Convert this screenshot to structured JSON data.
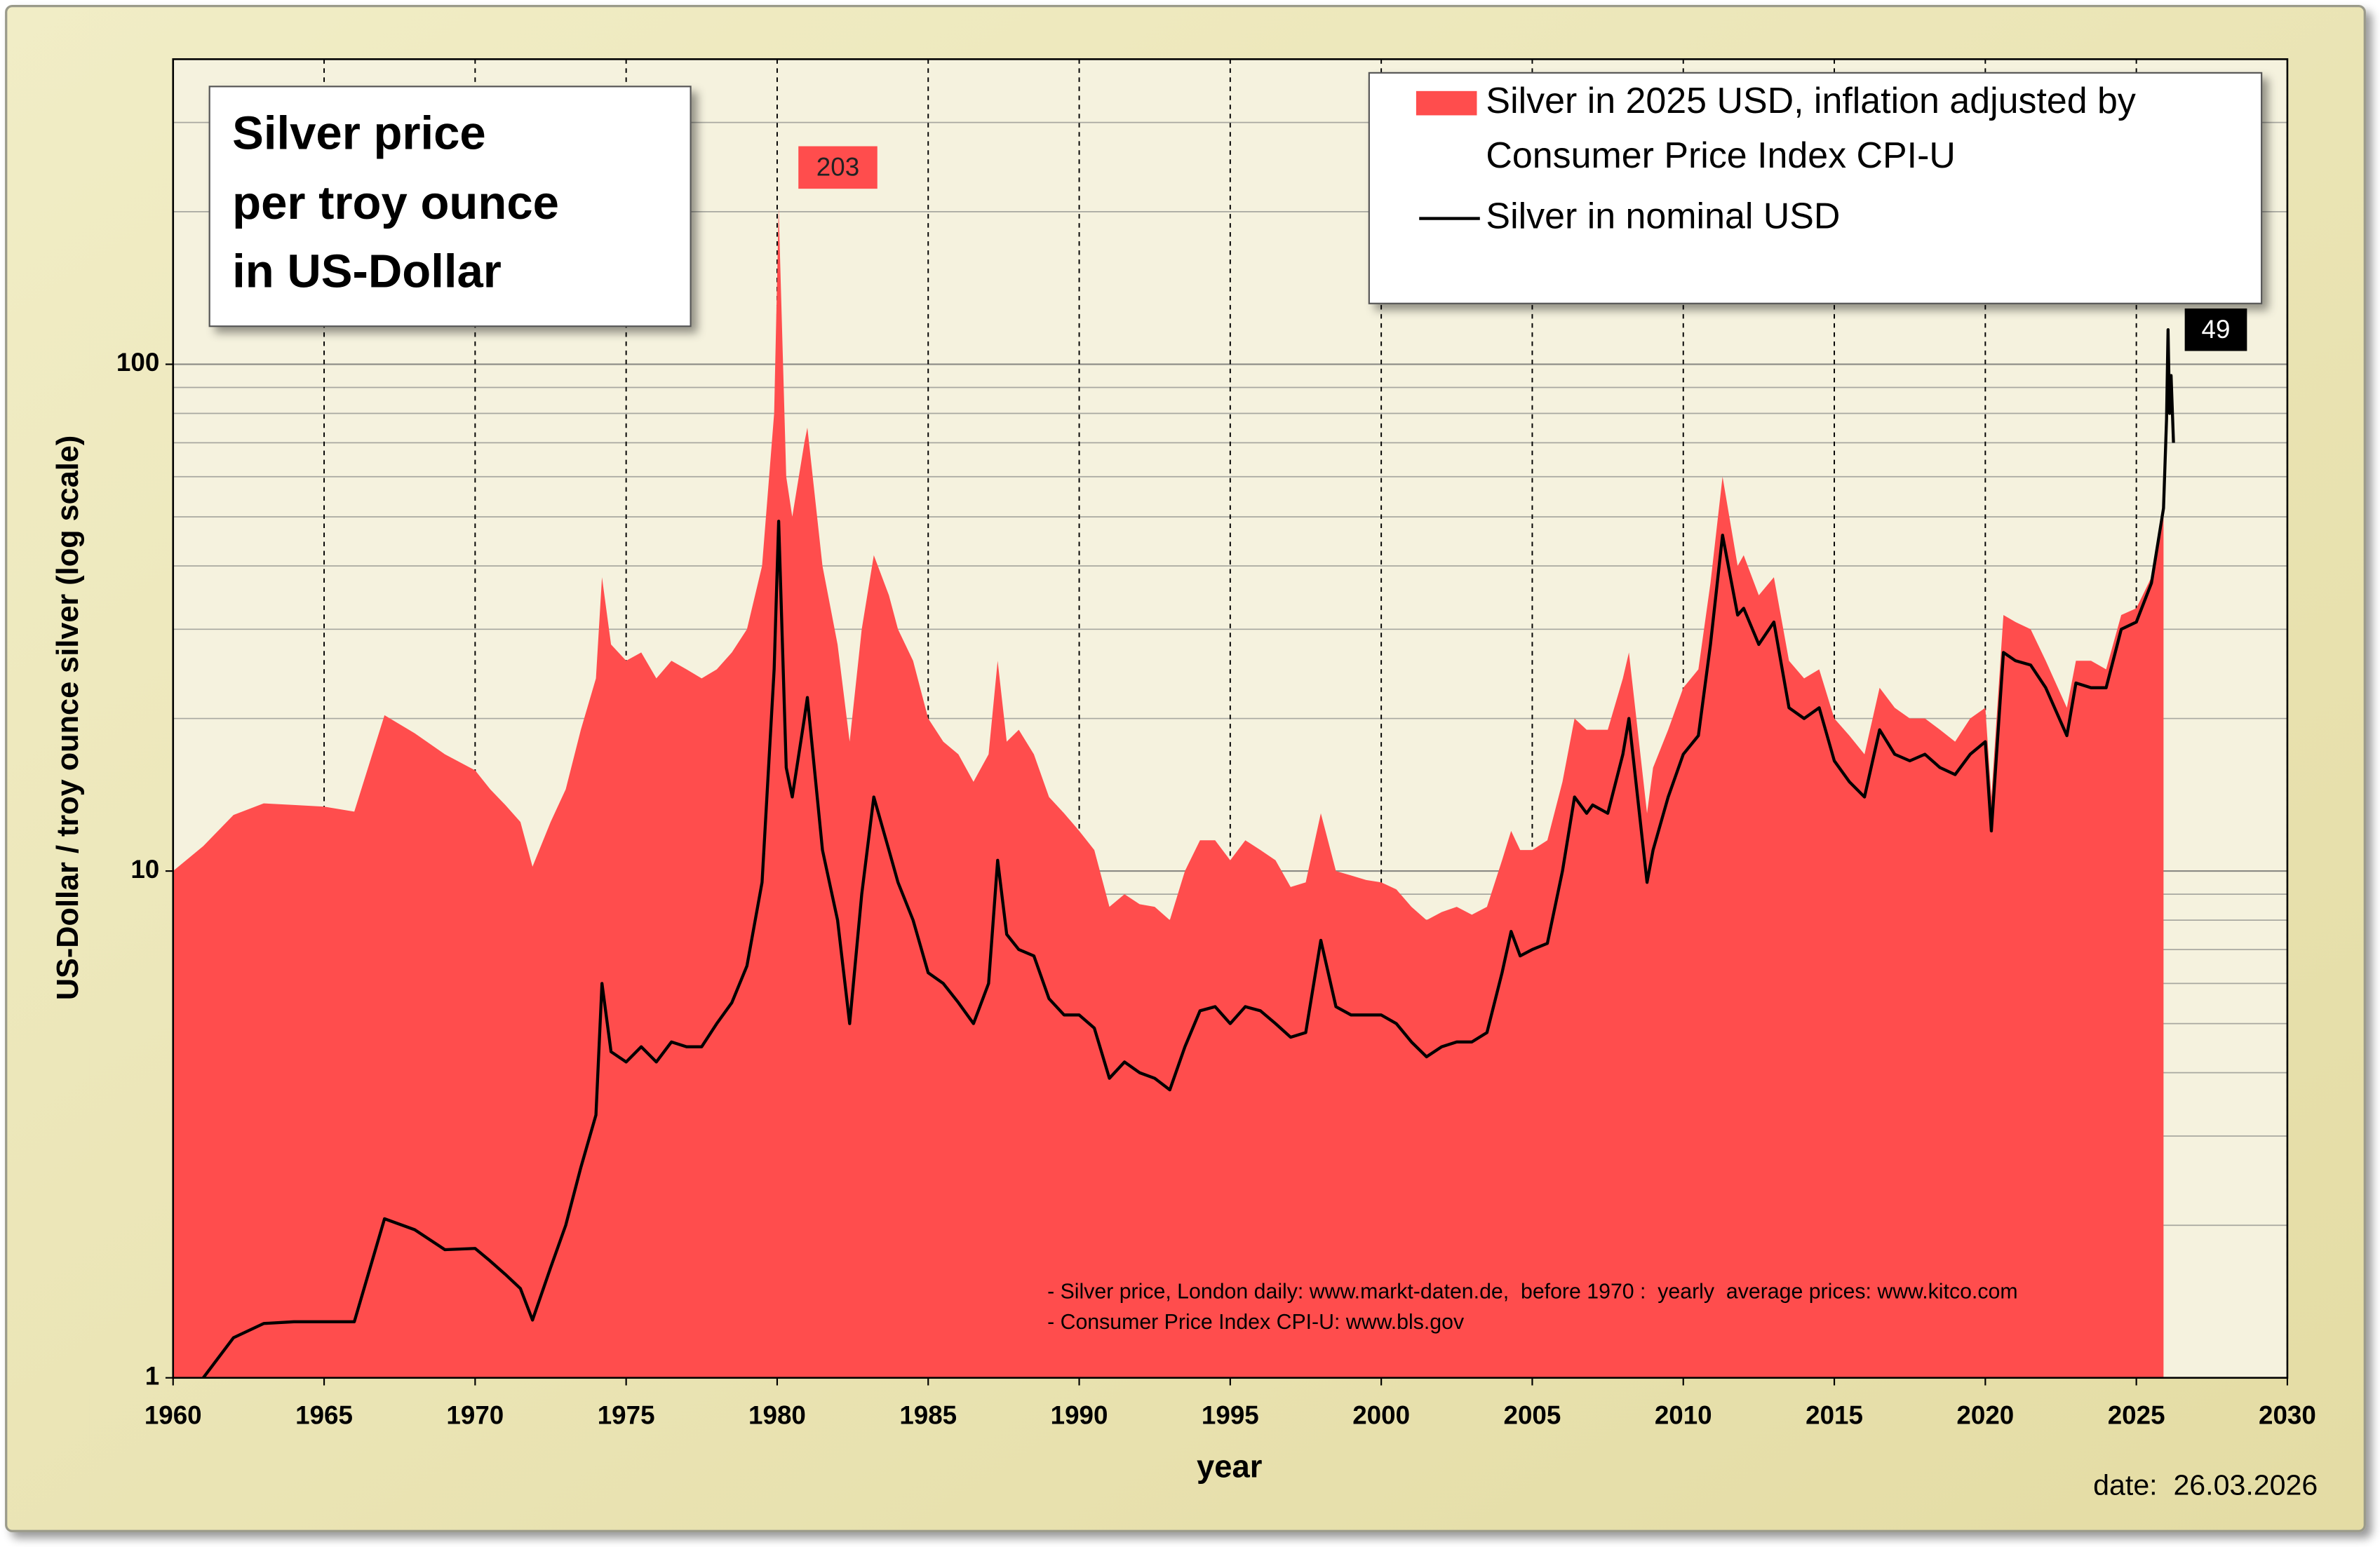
{
  "chart_data": {
    "type": "line",
    "title_lines": [
      "Silver price",
      "per troy ounce",
      "in US-Dollar"
    ],
    "x_label": "year",
    "y_label": "US-Dollar / troy ounce silver (log scale)",
    "notes": [
      "- Silver price, London daily: www.markt-daten.de,  before 1970 :  yearly  average prices: www.kitco.com",
      "- Consumer Price Index CPI-U: www.bls.gov"
    ],
    "date": "date:  26.03.2026",
    "annotations": [
      "203",
      "49"
    ],
    "log_y": true,
    "grid": true,
    "legend": "top-right",
    "xlim": [
      1960,
      2030
    ],
    "xticks": [
      1960,
      1965,
      1970,
      1975,
      1980,
      1985,
      1990,
      1995,
      2000,
      2005,
      2010,
      2015,
      2020,
      2025,
      2030
    ],
    "ylim": [
      1,
      400
    ],
    "yticks": [
      1,
      10,
      100
    ],
    "minor_yticks": [
      2,
      3,
      4,
      5,
      6,
      7,
      8,
      9,
      20,
      30,
      40,
      50,
      60,
      70,
      80,
      90,
      200,
      300,
      400
    ],
    "x": [
      1960,
      1961,
      1962,
      1963,
      1964,
      1965,
      1966,
      1967,
      1968,
      1969,
      1970,
      1970.5,
      1971,
      1971.5,
      1971.9,
      1972.5,
      1973,
      1973.5,
      1974,
      1974.2,
      1974.5,
      1975,
      1975.5,
      1976,
      1976.5,
      1977,
      1977.5,
      1978,
      1978.5,
      1979,
      1979.5,
      1979.9,
      1980.05,
      1980.3,
      1980.5,
      1980.9,
      1981,
      1981.5,
      1982,
      1982.4,
      1982.8,
      1983.2,
      1983.7,
      1984,
      1984.5,
      1985,
      1985.5,
      1986,
      1986.5,
      1987,
      1987.3,
      1987.6,
      1988,
      1988.5,
      1989,
      1989.5,
      1990,
      1990.5,
      1991,
      1991.5,
      1992,
      1992.5,
      1993,
      1993.5,
      1994,
      1994.5,
      1995,
      1995.5,
      1996,
      1996.5,
      1997,
      1997.5,
      1998,
      1998.5,
      1999,
      1999.5,
      2000,
      2000.5,
      2001,
      2001.5,
      2002,
      2002.5,
      2003,
      2003.5,
      2004,
      2004.3,
      2004.6,
      2005,
      2005.5,
      2006,
      2006.4,
      2006.8,
      2007,
      2007.5,
      2008,
      2008.2,
      2008.8,
      2009,
      2009.5,
      2010,
      2010.5,
      2010.9,
      2011.3,
      2011.8,
      2012,
      2012.5,
      2013,
      2013.5,
      2014,
      2014.5,
      2015,
      2015.5,
      2016,
      2016.5,
      2017,
      2017.5,
      2018,
      2018.5,
      2019,
      2019.5,
      2020,
      2020.2,
      2020.6,
      2021,
      2021.5,
      2022,
      2022.7,
      2023,
      2023.5,
      2024,
      2024.5,
      2025,
      2025.5,
      2025.9,
      2026,
      2026.05,
      2026.1,
      2026.15,
      2026.23
    ],
    "series": [
      {
        "name": [
          "Silver in 2025 USD, inflation adjusted by",
          "Consumer Price Index CPI-U"
        ],
        "kind": "area",
        "color": "#ff4d4d",
        "values": [
          10,
          11.2,
          12.9,
          13.6,
          13.5,
          13.4,
          13.1,
          20.3,
          18.7,
          17.0,
          15.8,
          14.5,
          13.5,
          12.5,
          10.2,
          12.5,
          14.5,
          19,
          24,
          38,
          28,
          26,
          27,
          24,
          26,
          25,
          24,
          25,
          27,
          30,
          40,
          80,
          203,
          60,
          50,
          70,
          75,
          40,
          28,
          18,
          30,
          42,
          35,
          30,
          26,
          20,
          18,
          17,
          15,
          17,
          26,
          18,
          19,
          17,
          14,
          13,
          12,
          11,
          8.5,
          9,
          8.6,
          8.5,
          8,
          10,
          11.5,
          11.5,
          10.5,
          11.5,
          11,
          10.5,
          9.3,
          9.5,
          13,
          10,
          9.8,
          9.6,
          9.5,
          9.2,
          8.5,
          8,
          8.3,
          8.5,
          8.2,
          8.5,
          10.5,
          12,
          11,
          11,
          11.5,
          15,
          20,
          19,
          19,
          19,
          24,
          27,
          13,
          16,
          19,
          23,
          25,
          37,
          60,
          40,
          42,
          35,
          38,
          26,
          24,
          25,
          20,
          18.5,
          17,
          23,
          21,
          20,
          20,
          19,
          18,
          20,
          21,
          14,
          32,
          31,
          30,
          26,
          21,
          26,
          26,
          25,
          32,
          33,
          38,
          50,
          null,
          null,
          null,
          null,
          null
        ]
      },
      {
        "name": [
          "Silver in nominal USD"
        ],
        "kind": "line",
        "color": "#000000",
        "values": [
          null,
          1.0,
          1.2,
          1.28,
          1.29,
          1.29,
          1.29,
          2.06,
          1.96,
          1.79,
          1.8,
          1.7,
          1.6,
          1.5,
          1.3,
          1.65,
          2.0,
          2.6,
          3.3,
          6.0,
          4.4,
          4.2,
          4.5,
          4.2,
          4.6,
          4.5,
          4.5,
          5.0,
          5.5,
          6.5,
          9.5,
          25,
          49,
          16,
          14,
          20,
          22,
          11,
          8,
          5,
          9,
          14,
          11,
          9.5,
          8,
          6.3,
          6,
          5.5,
          5,
          6,
          10.5,
          7.5,
          7,
          6.8,
          5.6,
          5.2,
          5.2,
          4.9,
          3.9,
          4.2,
          4.0,
          3.9,
          3.7,
          4.5,
          5.3,
          5.4,
          5.0,
          5.4,
          5.3,
          5.0,
          4.7,
          4.8,
          7.3,
          5.4,
          5.2,
          5.2,
          5.2,
          5.0,
          4.6,
          4.3,
          4.5,
          4.6,
          4.6,
          4.8,
          6.3,
          7.6,
          6.8,
          7.0,
          7.2,
          10,
          14,
          13,
          13.5,
          13,
          17,
          20,
          9.5,
          11,
          14,
          17,
          18.5,
          28,
          46,
          32,
          33,
          28,
          31,
          21,
          20,
          21,
          16.5,
          15,
          14,
          19,
          17,
          16.5,
          17,
          16,
          15.5,
          17,
          18,
          12,
          27,
          26,
          25.5,
          23,
          18.5,
          23.5,
          23,
          23,
          30,
          31,
          37,
          52,
          78,
          117,
          80,
          95,
          70
        ]
      }
    ]
  }
}
